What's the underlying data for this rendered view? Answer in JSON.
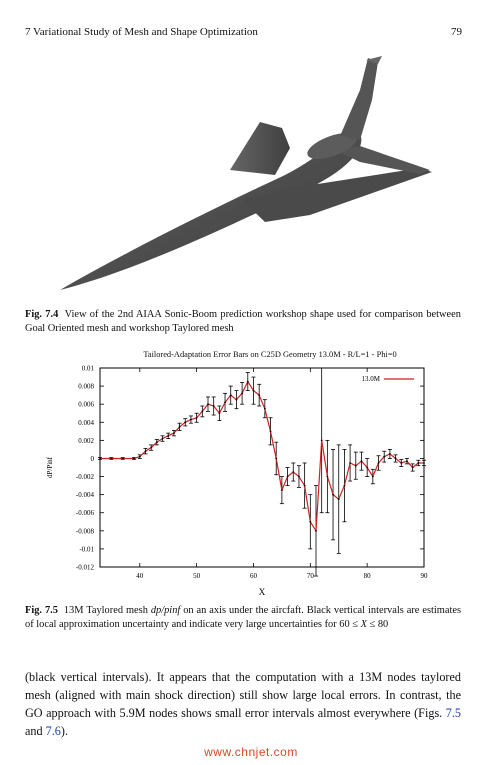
{
  "header": {
    "running_head": "7   Variational Study of Mesh and Shape Optimization",
    "page_number": "79"
  },
  "figure_7_4": {
    "label": "Fig. 7.4",
    "caption": "View of the 2nd AIAA Sonic-Boom prediction workshop shape used for comparison between Goal Oriented mesh and workshop Taylored mesh",
    "body_color": "#5a5a5a"
  },
  "figure_7_5": {
    "label": "Fig. 7.5",
    "caption_pre": "13M Taylored mesh ",
    "caption_math": "dp/pinf",
    "caption_mid": " on an axis under the aircfaft. Black vertical intervals are estimates of local approximation uncertainty and indicate very large uncertainties for 60 ≤ ",
    "caption_var": "X",
    "caption_post": " ≤ 80"
  },
  "chart_data": {
    "type": "line",
    "title": "Tailored-Adaptation Error Bars on C25D Geometry 13.0M - R/L=1 - Phi=0",
    "xlabel": "X",
    "ylabel": "dP/Pinf",
    "xlim": [
      33,
      90
    ],
    "ylim": [
      -0.012,
      0.01
    ],
    "xticks": [
      40,
      50,
      60,
      70,
      80,
      90
    ],
    "yticks": [
      0.01,
      0.008,
      0.006,
      0.004,
      0.002,
      0,
      -0.002,
      -0.004,
      -0.006,
      -0.008,
      -0.01,
      -0.012
    ],
    "ytick_labels": [
      "0.01",
      "0.008",
      "0.006",
      "0.004",
      "0.002",
      "0",
      "-0.002",
      "-0.004",
      "-0.006",
      "-0.008",
      "-0.01",
      "-0.012"
    ],
    "legend_position": "top-right",
    "grid": false,
    "series": [
      {
        "name": "13.0M",
        "color": "#cc2222",
        "x": [
          33,
          35,
          37,
          39,
          40,
          41,
          42,
          43,
          44,
          45,
          46,
          47,
          48,
          49,
          50,
          51,
          52,
          53,
          54,
          55,
          56,
          57,
          58,
          59,
          60,
          61,
          62,
          63,
          64,
          65,
          66,
          67,
          68,
          69,
          70,
          71,
          72,
          73,
          74,
          75,
          76,
          77,
          78,
          79,
          80,
          81,
          82,
          83,
          84,
          85,
          86,
          87,
          88,
          89,
          90
        ],
        "y": [
          0.0,
          0.0,
          0.0,
          0.0,
          0.0002,
          0.0008,
          0.0012,
          0.0018,
          0.0022,
          0.0025,
          0.0028,
          0.0035,
          0.004,
          0.0043,
          0.0045,
          0.0052,
          0.006,
          0.0058,
          0.005,
          0.0062,
          0.007,
          0.0065,
          0.0072,
          0.0085,
          0.0075,
          0.007,
          0.0055,
          0.003,
          0.0,
          -0.0035,
          -0.002,
          -0.0015,
          -0.002,
          -0.003,
          -0.007,
          -0.008,
          0.002,
          -0.002,
          -0.004,
          -0.0045,
          -0.003,
          -0.0005,
          -0.0008,
          -0.0003,
          -0.001,
          -0.002,
          -0.0005,
          0.0002,
          0.0005,
          0.0,
          -0.0005,
          -0.0003,
          -0.001,
          -0.0005,
          -0.0005
        ],
        "error": [
          0.0001,
          0.0001,
          0.0001,
          0.0001,
          0.0002,
          0.0003,
          0.0003,
          0.0003,
          0.0003,
          0.0003,
          0.0003,
          0.0004,
          0.0004,
          0.0004,
          0.0005,
          0.0006,
          0.0008,
          0.001,
          0.0008,
          0.001,
          0.001,
          0.001,
          0.0012,
          0.001,
          0.0015,
          0.0012,
          0.001,
          0.0015,
          0.0018,
          0.0015,
          0.001,
          0.001,
          0.0012,
          0.0025,
          0.003,
          0.005,
          0.008,
          0.004,
          0.005,
          0.006,
          0.004,
          0.002,
          0.0015,
          0.001,
          0.001,
          0.0008,
          0.0008,
          0.0006,
          0.0005,
          0.0004,
          0.0004,
          0.0003,
          0.0004,
          0.0003,
          0.0003
        ]
      }
    ]
  },
  "body": {
    "text_pre": "(black vertical intervals). It appears that the computation with a 13M nodes taylored mesh (aligned with main shock direction) still show large local errors. In contrast, the GO approach with 5.9M nodes shows small error intervals almost everywhere (Figs. ",
    "ref1": "7.5",
    "text_and": " and ",
    "ref2": "7.6",
    "text_post": ")."
  },
  "footer": {
    "watermark": "www.chnjet.com"
  }
}
